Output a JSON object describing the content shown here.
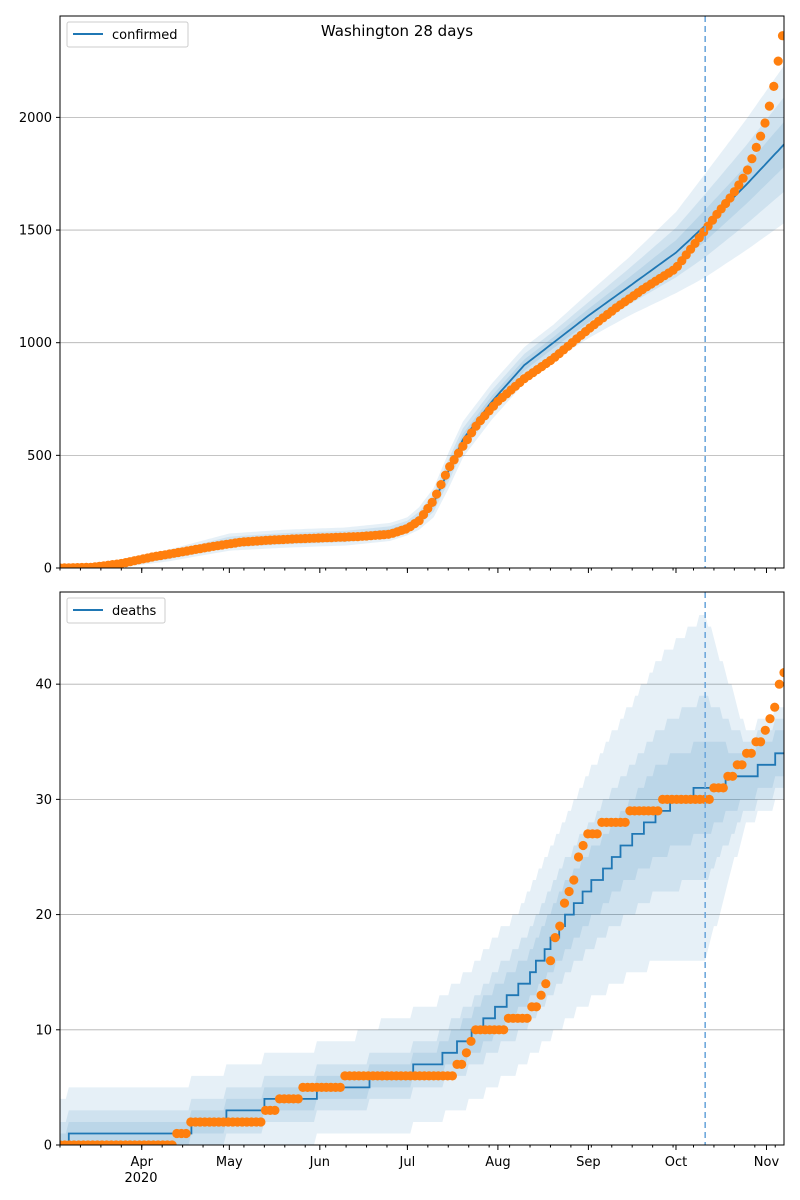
{
  "chart_data": [
    {
      "type": "line",
      "title": "Washington 28 days",
      "xlabel": "",
      "ylabel": "",
      "legend": {
        "label": "confirmed",
        "placement": "top-left"
      },
      "x_range": [
        "2020-03-04",
        "2020-11-07"
      ],
      "ylim": [
        0,
        2450
      ],
      "yticks": [
        0,
        500,
        1000,
        1500,
        2000
      ],
      "grid": "horizontal",
      "forecast_start": "2020-10-11",
      "colors": {
        "line": "#1f77b4",
        "band": "#1f77b4",
        "points": "#ff7f0e",
        "forecast_line": "#6fa8dc"
      },
      "model": {
        "name": "confirmed",
        "x": [
          "2020-03-04",
          "2020-03-20",
          "2020-04-10",
          "2020-05-01",
          "2020-05-20",
          "2020-06-10",
          "2020-06-25",
          "2020-07-01",
          "2020-07-05",
          "2020-07-10",
          "2020-07-15",
          "2020-07-20",
          "2020-07-30",
          "2020-08-10",
          "2020-08-20",
          "2020-09-01",
          "2020-09-15",
          "2020-10-01",
          "2020-10-11",
          "2020-10-25",
          "2020-11-07"
        ],
        "values": [
          0,
          5,
          55,
          115,
          130,
          140,
          160,
          185,
          220,
          290,
          430,
          570,
          740,
          900,
          1000,
          1120,
          1250,
          1400,
          1520,
          1700,
          1880
        ],
        "band_halfwidths": [
          [
            0,
            3,
            8,
            12,
            12,
            12,
            12,
            12,
            15,
            20,
            25,
            25,
            25,
            25,
            25,
            30,
            40,
            55,
            70,
            85,
            100
          ],
          [
            0,
            6,
            16,
            24,
            25,
            25,
            25,
            25,
            30,
            40,
            50,
            50,
            50,
            50,
            50,
            60,
            80,
            110,
            140,
            175,
            210
          ],
          [
            0,
            10,
            26,
            38,
            40,
            40,
            40,
            40,
            50,
            65,
            80,
            80,
            80,
            80,
            80,
            100,
            130,
            180,
            230,
            290,
            350
          ]
        ]
      },
      "observed": {
        "x": [
          "2020-03-04",
          "2020-03-15",
          "2020-03-25",
          "2020-04-05",
          "2020-04-15",
          "2020-04-25",
          "2020-05-05",
          "2020-05-15",
          "2020-05-25",
          "2020-06-05",
          "2020-06-15",
          "2020-06-25",
          "2020-07-01",
          "2020-07-05",
          "2020-07-10",
          "2020-07-15",
          "2020-07-20",
          "2020-07-25",
          "2020-08-01",
          "2020-08-10",
          "2020-08-20",
          "2020-09-01",
          "2020-09-10",
          "2020-09-20",
          "2020-10-01",
          "2020-10-11",
          "2020-10-15",
          "2020-10-20",
          "2020-10-25",
          "2020-10-28",
          "2020-10-31",
          "2020-11-03",
          "2020-11-05",
          "2020-11-07"
        ],
        "values": [
          0,
          3,
          20,
          50,
          72,
          95,
          115,
          124,
          130,
          135,
          140,
          150,
          175,
          210,
          300,
          440,
          540,
          640,
          740,
          840,
          930,
          1060,
          1150,
          1240,
          1330,
          1500,
          1570,
          1650,
          1750,
          1850,
          1950,
          2100,
          2250,
          2400
        ]
      }
    },
    {
      "type": "line",
      "title": "",
      "xlabel": "",
      "ylabel": "",
      "legend": {
        "label": "deaths",
        "placement": "top-left"
      },
      "x_range": [
        "2020-03-04",
        "2020-11-07"
      ],
      "ylim": [
        0,
        48
      ],
      "yticks": [
        0,
        10,
        20,
        30,
        40
      ],
      "grid": "horizontal",
      "forecast_start": "2020-10-11",
      "xtick_labels": [
        "Apr",
        "May",
        "Jun",
        "Jul",
        "Aug",
        "Sep",
        "Oct",
        "Nov"
      ],
      "xtick_dates": [
        "2020-04-01",
        "2020-05-01",
        "2020-06-01",
        "2020-07-01",
        "2020-08-01",
        "2020-09-01",
        "2020-10-01",
        "2020-11-01"
      ],
      "year_label": "2020",
      "model": {
        "name": "deaths",
        "x": [
          "2020-03-04",
          "2020-03-09",
          "2020-04-10",
          "2020-04-25",
          "2020-05-05",
          "2020-05-20",
          "2020-06-10",
          "2020-06-25",
          "2020-07-10",
          "2020-07-25",
          "2020-08-10",
          "2020-08-25",
          "2020-09-10",
          "2020-09-25",
          "2020-10-11",
          "2020-10-25",
          "2020-11-07"
        ],
        "values": [
          0,
          1,
          1,
          2,
          3,
          4,
          5,
          6,
          7,
          10,
          14,
          20,
          25,
          29,
          31,
          32,
          34
        ],
        "band_halfwidths": [
          [
            1,
            1,
            1,
            1,
            1,
            1,
            1,
            1,
            1,
            2,
            2,
            3,
            3,
            4,
            4,
            2,
            2
          ],
          [
            2,
            2,
            2,
            2,
            2,
            2,
            2,
            2,
            2,
            3,
            4,
            5,
            6,
            7,
            8,
            3,
            3
          ],
          [
            4,
            4,
            4,
            4,
            4,
            4,
            4,
            5,
            5,
            6,
            7,
            9,
            11,
            13,
            15,
            4,
            4
          ]
        ]
      },
      "observed": {
        "x": [
          "2020-03-04",
          "2020-04-10",
          "2020-04-15",
          "2020-04-20",
          "2020-05-10",
          "2020-05-20",
          "2020-06-01",
          "2020-06-15",
          "2020-07-01",
          "2020-07-15",
          "2020-07-20",
          "2020-07-25",
          "2020-08-01",
          "2020-08-08",
          "2020-08-15",
          "2020-08-20",
          "2020-08-25",
          "2020-09-01",
          "2020-09-10",
          "2020-09-20",
          "2020-10-01",
          "2020-10-11",
          "2020-10-15",
          "2020-10-20",
          "2020-10-25",
          "2020-10-30",
          "2020-11-03",
          "2020-11-06"
        ],
        "values": [
          0,
          0,
          1,
          2,
          2,
          4,
          5,
          6,
          6,
          6,
          7,
          10,
          10,
          11,
          12,
          17,
          22,
          27,
          28,
          29,
          30,
          30,
          31,
          32,
          34,
          35,
          37,
          41
        ]
      }
    }
  ]
}
